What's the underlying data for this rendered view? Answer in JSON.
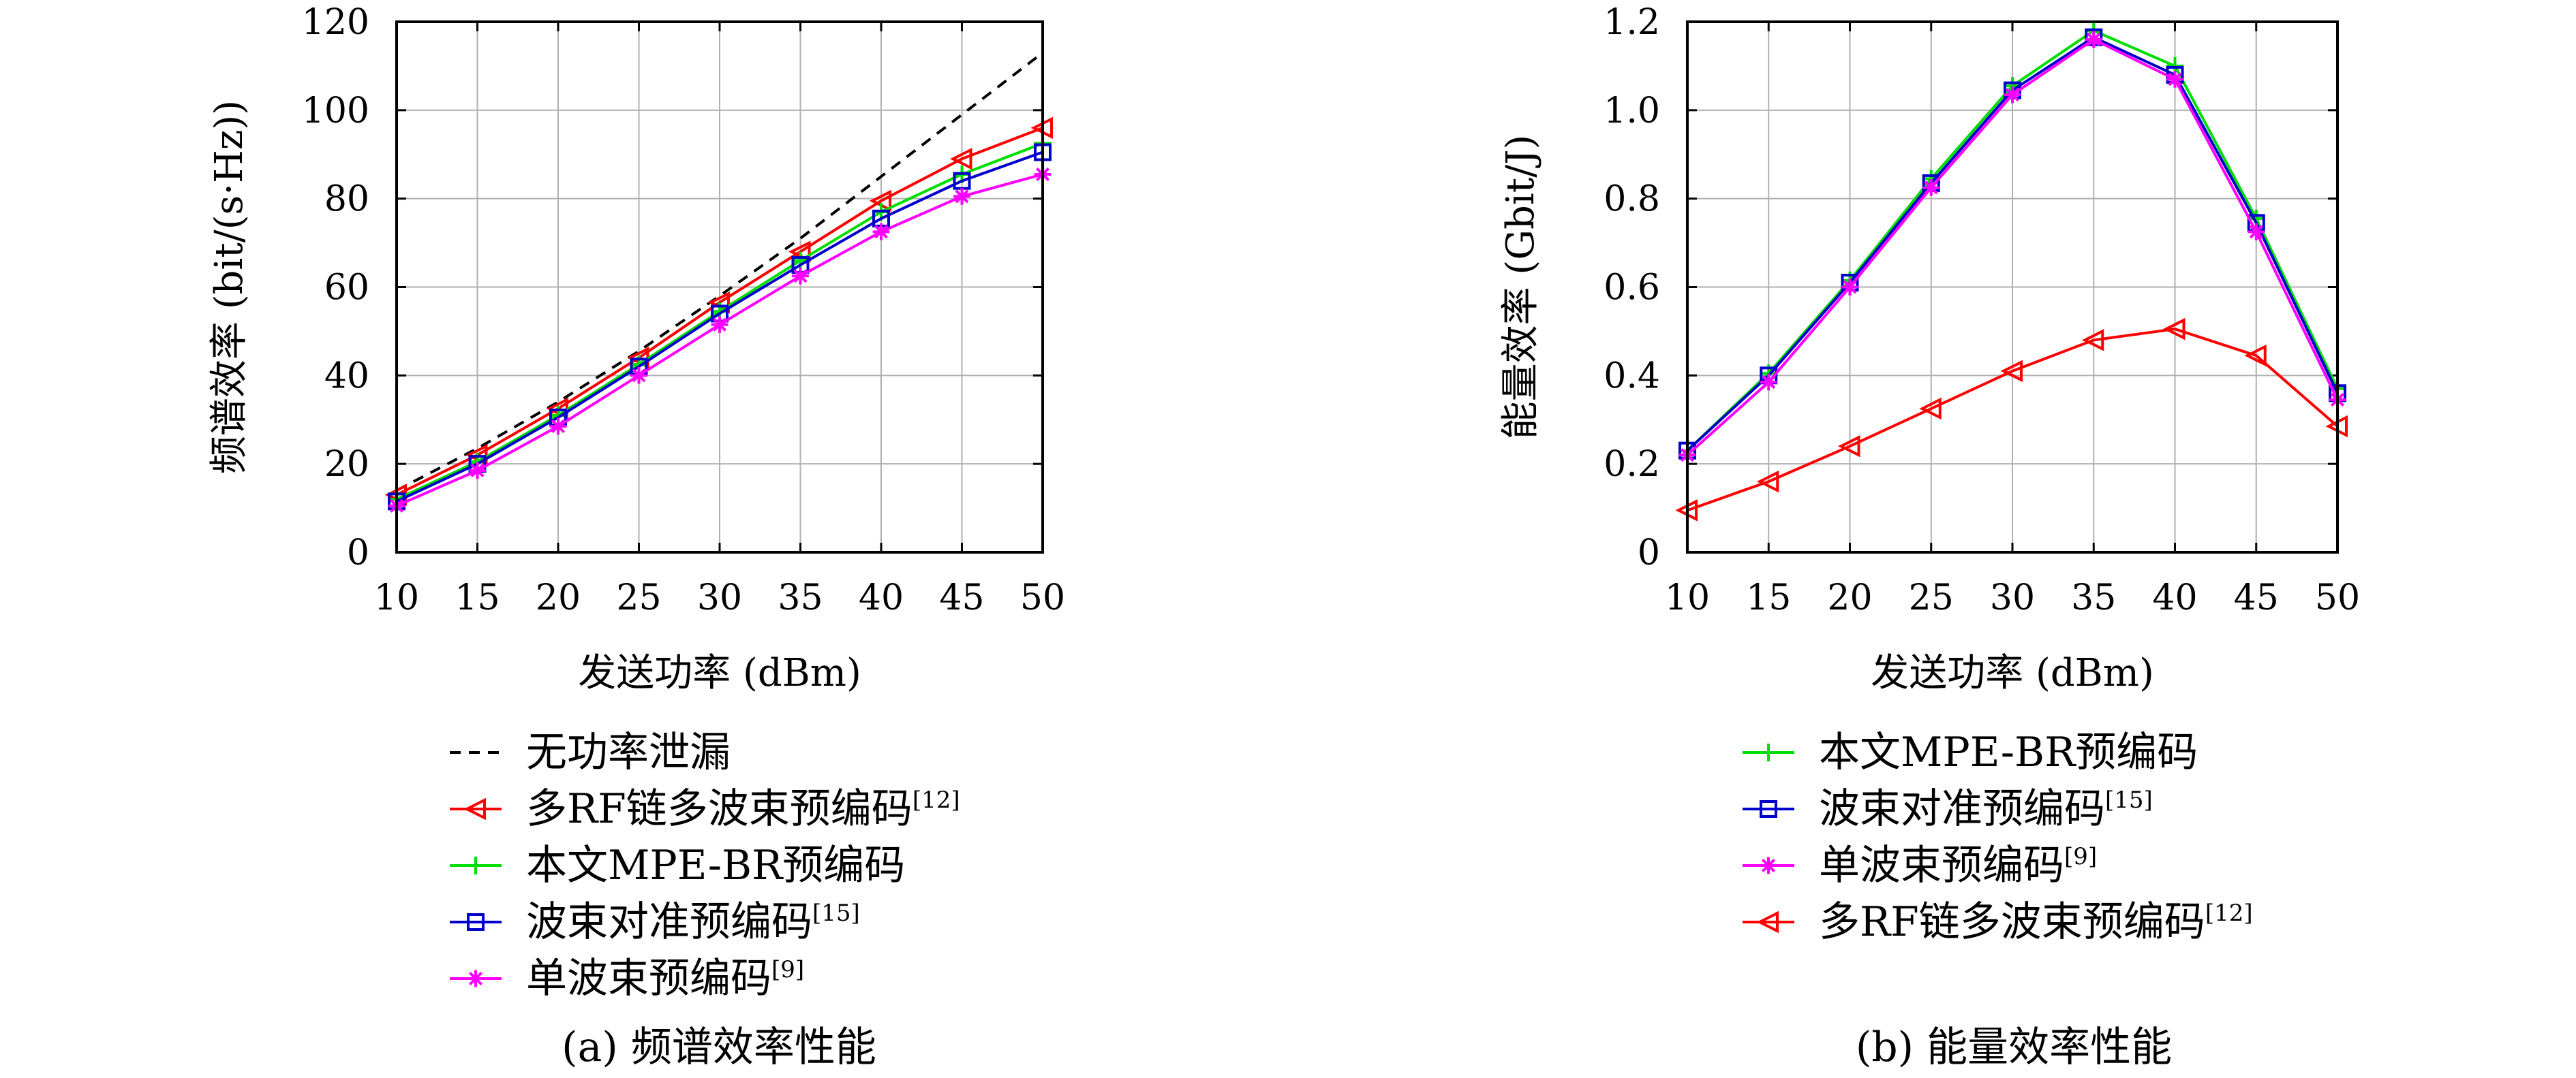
{
  "chart_data": [
    {
      "type": "line",
      "xlabel": "发送功率 (dBm)",
      "ylabel": "频谱效率 (bit/(s·Hz))",
      "caption": "(a) 频谱效率性能",
      "x": [
        10,
        15,
        20,
        25,
        30,
        35,
        40,
        45,
        50
      ],
      "xlim": [
        10,
        50
      ],
      "ylim": [
        0,
        120
      ],
      "xticks": [
        "10",
        "15",
        "20",
        "25",
        "30",
        "35",
        "40",
        "45",
        "50"
      ],
      "yticks": [
        "0",
        "20",
        "40",
        "60",
        "80",
        "100",
        "120"
      ],
      "grid": true,
      "legend_position": "below",
      "series": [
        {
          "name": "无功率泄漏",
          "color": "#000000",
          "marker": "none",
          "dash": true,
          "values": [
            14,
            23.5,
            34,
            45.5,
            58,
            71,
            85,
            99,
            113
          ]
        },
        {
          "name": "多RF链多波束预编码",
          "ref": "[12]",
          "color": "#ff0000",
          "marker": "triangle-left",
          "values": [
            13,
            22,
            32.5,
            44,
            56.5,
            68,
            79.5,
            89,
            96
          ]
        },
        {
          "name": "本文MPE-BR预编码",
          "ref": "",
          "color": "#00dd00",
          "marker": "plus",
          "values": [
            12,
            20.5,
            31,
            42.5,
            54.5,
            66,
            77,
            85.5,
            92.5
          ]
        },
        {
          "name": "波束对准预编码",
          "ref": "[15]",
          "color": "#0000cc",
          "marker": "square",
          "values": [
            11.5,
            20,
            30.5,
            42,
            54,
            65,
            75.5,
            84,
            90.5
          ]
        },
        {
          "name": "单波束预编码",
          "ref": "[9]",
          "color": "#ff00ff",
          "marker": "star",
          "values": [
            10.5,
            18.5,
            28.5,
            40,
            51.5,
            62.5,
            72.5,
            80.5,
            85.5
          ]
        }
      ]
    },
    {
      "type": "line",
      "xlabel": "发送功率 (dBm)",
      "ylabel": "能量效率 (Gbit/J)",
      "caption": "(b) 能量效率性能",
      "x": [
        10,
        15,
        20,
        25,
        30,
        35,
        40,
        45,
        50
      ],
      "xlim": [
        10,
        50
      ],
      "ylim": [
        0,
        1.2
      ],
      "xticks": [
        "10",
        "15",
        "20",
        "25",
        "30",
        "35",
        "40",
        "45",
        "50"
      ],
      "yticks": [
        "0",
        "0.2",
        "0.4",
        "0.6",
        "0.8",
        "1.0",
        "1.2"
      ],
      "grid": true,
      "legend_position": "below",
      "series": [
        {
          "name": "本文MPE-BR预编码",
          "ref": "",
          "color": "#00dd00",
          "marker": "plus",
          "values": [
            0.23,
            0.405,
            0.615,
            0.845,
            1.055,
            1.18,
            1.1,
            0.755,
            0.37
          ]
        },
        {
          "name": "波束对准预编码",
          "ref": "[15]",
          "color": "#0000cc",
          "marker": "square",
          "values": [
            0.23,
            0.4,
            0.61,
            0.835,
            1.045,
            1.165,
            1.08,
            0.745,
            0.36
          ]
        },
        {
          "name": "单波束预编码",
          "ref": "[9]",
          "color": "#ff00ff",
          "marker": "star",
          "values": [
            0.22,
            0.385,
            0.6,
            0.825,
            1.035,
            1.16,
            1.07,
            0.725,
            0.345
          ]
        },
        {
          "name": "多RF链多波束预编码",
          "ref": "[12]",
          "color": "#ff0000",
          "marker": "triangle-left",
          "values": [
            0.095,
            0.16,
            0.24,
            0.325,
            0.41,
            0.48,
            0.505,
            0.445,
            0.285
          ]
        }
      ]
    }
  ]
}
